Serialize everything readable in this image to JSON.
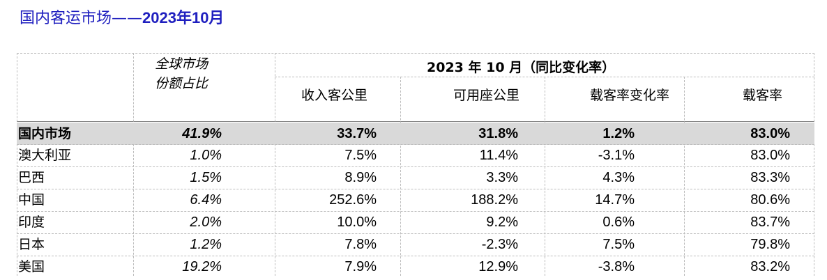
{
  "page": {
    "title_prefix": "国内客运市场——",
    "title_date": "2023年10月"
  },
  "table": {
    "share_header_line1": "全球市场",
    "share_header_line2": "份额占比",
    "group_header": "2023 年 10 月（同比变化率）",
    "columns": [
      "收入客公里",
      "可用座公里",
      "载客率变化率",
      "载客率"
    ],
    "rows": [
      {
        "name": "国内市场",
        "share": "41.9%",
        "rpk": "33.7%",
        "ask": "31.8%",
        "plf_change": "1.2%",
        "plf": "83.0%",
        "highlight": true
      },
      {
        "name": "澳大利亚",
        "share": "1.0%",
        "rpk": "7.5%",
        "ask": "11.4%",
        "plf_change": "-3.1%",
        "plf": "83.0%"
      },
      {
        "name": "巴西",
        "share": "1.5%",
        "rpk": "8.9%",
        "ask": "3.3%",
        "plf_change": "4.3%",
        "plf": "83.3%"
      },
      {
        "name": "中国",
        "share": "6.4%",
        "rpk": "252.6%",
        "ask": "188.2%",
        "plf_change": "14.7%",
        "plf": "80.6%"
      },
      {
        "name": "印度",
        "share": "2.0%",
        "rpk": "10.0%",
        "ask": "9.2%",
        "plf_change": "0.6%",
        "plf": "83.7%"
      },
      {
        "name": "日本",
        "share": "1.2%",
        "rpk": "7.8%",
        "ask": "-2.3%",
        "plf_change": "7.5%",
        "plf": "79.8%"
      },
      {
        "name": "美国",
        "share": "19.2%",
        "rpk": "7.9%",
        "ask": "12.9%",
        "plf_change": "-3.8%",
        "plf": "83.2%"
      }
    ]
  }
}
